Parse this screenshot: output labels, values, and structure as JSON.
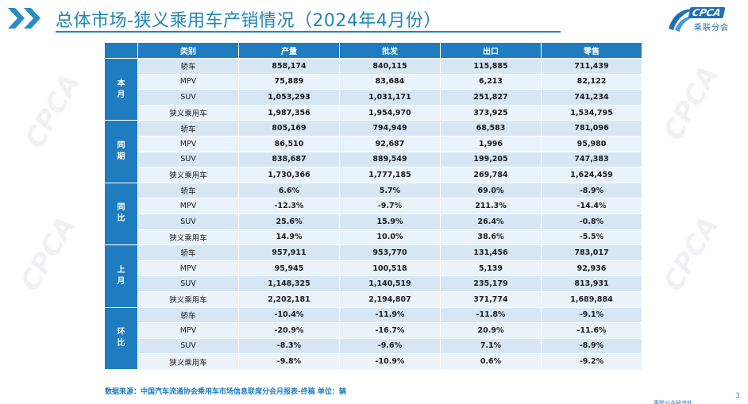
{
  "header": {
    "title": "总体市场-狭义乘用车产销情况（2024年4月份）"
  },
  "logo": {
    "mark": "CPCA",
    "subtitle": "乘联分会"
  },
  "watermark": "CPCA",
  "table": {
    "headers": [
      "类别",
      "产量",
      "批发",
      "出口",
      "零售"
    ],
    "groups": [
      {
        "label": "本月",
        "rows": [
          {
            "cat": "轿车",
            "values": [
              "858,174",
              "840,115",
              "115,885",
              "711,439"
            ]
          },
          {
            "cat": "MPV",
            "values": [
              "75,889",
              "83,684",
              "6,213",
              "82,122"
            ]
          },
          {
            "cat": "SUV",
            "values": [
              "1,053,293",
              "1,031,171",
              "251,827",
              "741,234"
            ]
          },
          {
            "cat": "狭义乘用车",
            "values": [
              "1,987,356",
              "1,954,970",
              "373,925",
              "1,534,795"
            ]
          }
        ]
      },
      {
        "label": "同期",
        "rows": [
          {
            "cat": "轿车",
            "values": [
              "805,169",
              "794,949",
              "68,583",
              "781,096"
            ]
          },
          {
            "cat": "MPV",
            "values": [
              "86,510",
              "92,687",
              "1,996",
              "95,980"
            ]
          },
          {
            "cat": "SUV",
            "values": [
              "838,687",
              "889,549",
              "199,205",
              "747,383"
            ]
          },
          {
            "cat": "狭义乘用车",
            "values": [
              "1,730,366",
              "1,777,185",
              "269,784",
              "1,624,459"
            ]
          }
        ]
      },
      {
        "label": "同比",
        "rows": [
          {
            "cat": "轿车",
            "values": [
              "6.6%",
              "5.7%",
              "69.0%",
              "-8.9%"
            ]
          },
          {
            "cat": "MPV",
            "values": [
              "-12.3%",
              "-9.7%",
              "211.3%",
              "-14.4%"
            ]
          },
          {
            "cat": "SUV",
            "values": [
              "25.6%",
              "15.9%",
              "26.4%",
              "-0.8%"
            ]
          },
          {
            "cat": "狭义乘用车",
            "values": [
              "14.9%",
              "10.0%",
              "38.6%",
              "-5.5%"
            ]
          }
        ]
      },
      {
        "label": "上月",
        "rows": [
          {
            "cat": "轿车",
            "values": [
              "957,911",
              "953,770",
              "131,456",
              "783,017"
            ]
          },
          {
            "cat": "MPV",
            "values": [
              "95,945",
              "100,518",
              "5,139",
              "92,936"
            ]
          },
          {
            "cat": "SUV",
            "values": [
              "1,148,325",
              "1,140,519",
              "235,179",
              "813,931"
            ]
          },
          {
            "cat": "狭义乘用车",
            "values": [
              "2,202,181",
              "2,194,807",
              "371,774",
              "1,689,884"
            ]
          }
        ]
      },
      {
        "label": "环比",
        "rows": [
          {
            "cat": "轿车",
            "values": [
              "-10.4%",
              "-11.9%",
              "-11.8%",
              "-9.1%"
            ]
          },
          {
            "cat": "MPV",
            "values": [
              "-20.9%",
              "-16.7%",
              "20.9%",
              "-11.6%"
            ]
          },
          {
            "cat": "SUV",
            "values": [
              "-8.3%",
              "-9.6%",
              "7.1%",
              "-8.9%"
            ]
          },
          {
            "cat": "狭义乘用车",
            "values": [
              "-9.8%",
              "-10.9%",
              "0.6%",
              "-9.2%"
            ]
          }
        ]
      }
    ]
  },
  "footer": {
    "source": "数据来源：中国汽车流通协会乘用车市场信息联席分会月报表-终稿      单位：辆",
    "page_number": "3",
    "corner_text": "乘联分会秘书处"
  },
  "colors": {
    "accent": "#1f7dbf",
    "title": "#1f87b8",
    "row_light": "#eaf2fa",
    "row_dark": "#d6e6f4"
  }
}
